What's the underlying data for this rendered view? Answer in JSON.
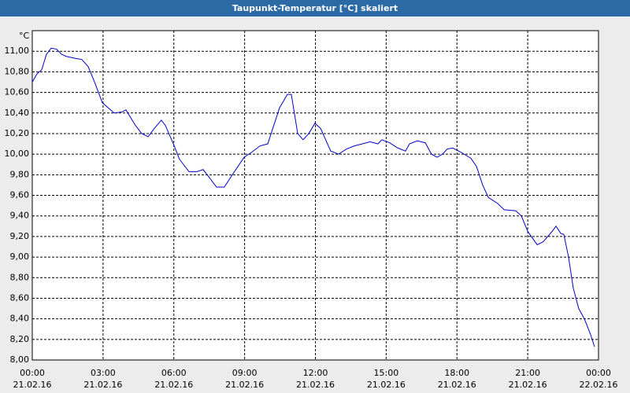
{
  "chart_data": {
    "type": "line",
    "title": "Taupunkt-Temperatur [°C] skaliert",
    "y_label": "°C",
    "x": [
      0,
      0.2,
      0.4,
      0.6,
      0.8,
      1.03,
      1.24,
      1.44,
      1.84,
      2.1,
      2.37,
      2.64,
      2.97,
      3.47,
      3.8,
      3.97,
      4.37,
      4.64,
      4.91,
      5.17,
      5.47,
      5.64,
      5.98,
      6.24,
      6.64,
      6.98,
      7.24,
      7.48,
      7.81,
      8.14,
      8.48,
      8.98,
      9.31,
      9.65,
      9.98,
      10.48,
      10.81,
      10.98,
      11.25,
      11.48,
      11.72,
      11.98,
      12.22,
      12.65,
      12.98,
      13.32,
      13.65,
      13.99,
      14.32,
      14.65,
      14.82,
      15.15,
      15.49,
      15.82,
      15.99,
      16.32,
      16.66,
      16.92,
      17.16,
      17.39,
      17.59,
      17.82,
      18.16,
      18.59,
      18.83,
      19.09,
      19.33,
      19.73,
      20.0,
      20.49,
      20.73,
      21.0,
      21.4,
      21.66,
      22.0,
      22.2,
      22.4,
      22.53,
      22.73,
      22.93,
      23.16,
      23.4,
      23.66,
      23.83
    ],
    "series": [
      {
        "color": "#0000cc",
        "values": [
          10.7,
          10.78,
          10.82,
          10.97,
          11.03,
          11.02,
          10.97,
          10.95,
          10.93,
          10.92,
          10.85,
          10.7,
          10.5,
          10.4,
          10.41,
          10.43,
          10.28,
          10.2,
          10.17,
          10.25,
          10.33,
          10.28,
          10.1,
          9.95,
          9.83,
          9.83,
          9.85,
          9.78,
          9.68,
          9.68,
          9.8,
          9.97,
          10.02,
          10.08,
          10.1,
          10.45,
          10.58,
          10.58,
          10.2,
          10.14,
          10.2,
          10.3,
          10.25,
          10.03,
          10.0,
          10.05,
          10.08,
          10.1,
          10.12,
          10.1,
          10.14,
          10.11,
          10.06,
          10.03,
          10.1,
          10.13,
          10.11,
          10.0,
          9.97,
          10.0,
          10.05,
          10.06,
          10.02,
          9.96,
          9.88,
          9.7,
          9.58,
          9.52,
          9.46,
          9.45,
          9.4,
          9.25,
          9.12,
          9.15,
          9.24,
          9.3,
          9.23,
          9.22,
          9.0,
          8.7,
          8.5,
          8.4,
          8.25,
          8.13
        ]
      }
    ],
    "xlim": [
      0,
      24
    ],
    "xticks": [
      {
        "value": 0,
        "label": [
          "00:00",
          "21.02.16"
        ]
      },
      {
        "value": 3,
        "label": [
          "03:00",
          "21.02.16"
        ]
      },
      {
        "value": 6,
        "label": [
          "06:00",
          "21.02.16"
        ]
      },
      {
        "value": 9,
        "label": [
          "09:00",
          "21.02.16"
        ]
      },
      {
        "value": 12,
        "label": [
          "12:00",
          "21.02.16"
        ]
      },
      {
        "value": 15,
        "label": [
          "15:00",
          "21.02.16"
        ]
      },
      {
        "value": 18,
        "label": [
          "18:00",
          "21.02.16"
        ]
      },
      {
        "value": 21,
        "label": [
          "21:00",
          "21.02.16"
        ]
      },
      {
        "value": 24,
        "label": [
          "00:00",
          "22.02.16"
        ]
      }
    ],
    "ylim": [
      8,
      11.2
    ],
    "yticks": [
      {
        "value": 8,
        "label": "8,00"
      },
      {
        "value": 8.2,
        "label": "8,20"
      },
      {
        "value": 8.4,
        "label": "8,40"
      },
      {
        "value": 8.6,
        "label": "8,60"
      },
      {
        "value": 8.8,
        "label": "8,80"
      },
      {
        "value": 9,
        "label": "9,00"
      },
      {
        "value": 9.2,
        "label": "9,20"
      },
      {
        "value": 9.4,
        "label": "9,40"
      },
      {
        "value": 9.6,
        "label": "9,60"
      },
      {
        "value": 9.8,
        "label": "9,80"
      },
      {
        "value": 10,
        "label": "10,00"
      },
      {
        "value": 10.2,
        "label": "10,20"
      },
      {
        "value": 10.4,
        "label": "10,40"
      },
      {
        "value": 10.6,
        "label": "10,60"
      },
      {
        "value": 10.8,
        "label": "10,80"
      },
      {
        "value": 11,
        "label": "11,00"
      }
    ],
    "grid": true
  }
}
